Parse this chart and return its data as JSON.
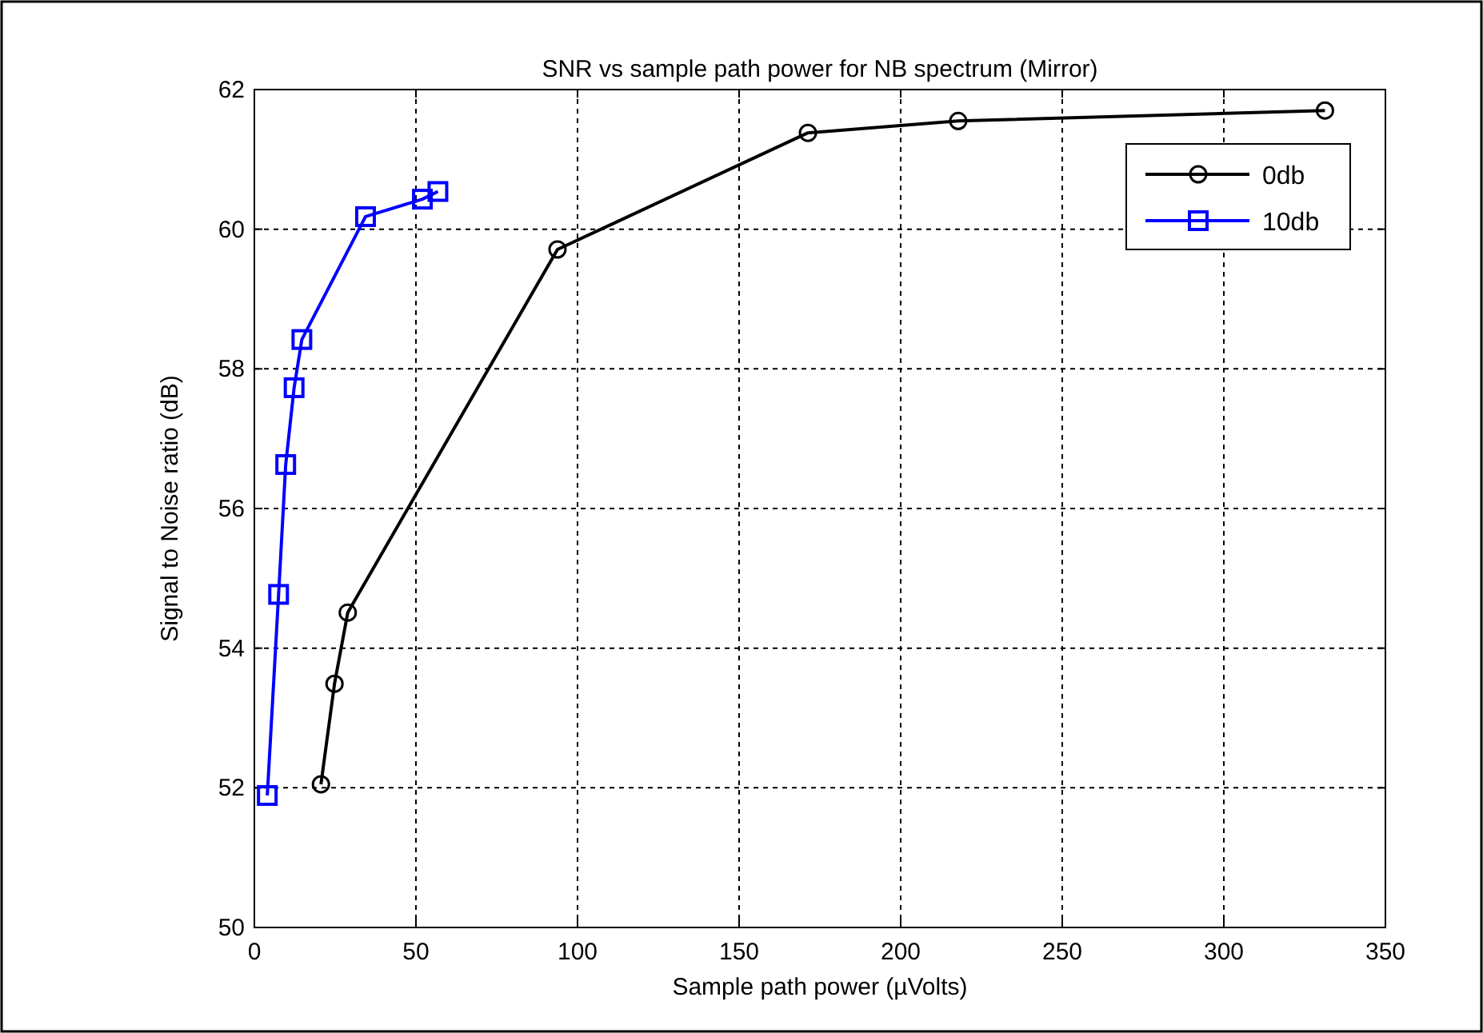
{
  "chart_data": {
    "type": "line",
    "title": "SNR vs sample path power for NB spectrum (Mirror)",
    "xlabel": "Sample path power (µVolts)",
    "ylabel": "Signal to Noise ratio (dB)",
    "series": [
      {
        "name": "0db",
        "color": "#000000",
        "marker": "circle",
        "x": [
          20.6,
          24.8,
          28.9,
          93.8,
          171.3,
          217.8,
          331.3
        ],
        "values": [
          52.05,
          53.49,
          54.51,
          59.71,
          61.38,
          61.55,
          61.7
        ]
      },
      {
        "name": "10db",
        "color": "#0000ff",
        "marker": "square",
        "x": [
          4.0,
          7.5,
          9.7,
          12.3,
          14.7,
          34.4,
          52.0,
          56.8
        ],
        "values": [
          51.89,
          54.77,
          56.63,
          57.73,
          58.42,
          60.18,
          60.43,
          60.54
        ]
      }
    ],
    "xlim": [
      0,
      350
    ],
    "xticks": [
      0,
      50,
      100,
      150,
      200,
      250,
      300,
      350
    ],
    "ylim": [
      50,
      62
    ],
    "yticks": [
      50,
      52,
      54,
      56,
      58,
      60,
      62
    ],
    "grid": true,
    "legend": "top right",
    "line_style": "solid"
  }
}
